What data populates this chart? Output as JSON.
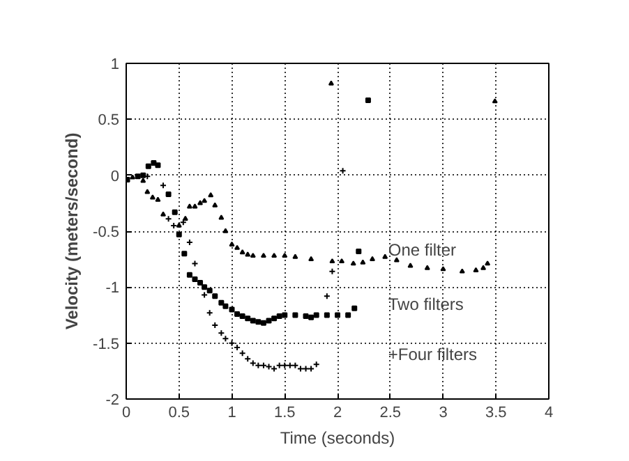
{
  "chart_data": {
    "type": "scatter",
    "xlabel": "Time (seconds)",
    "ylabel": "Velocity (meters/second)",
    "xlim": [
      0,
      4
    ],
    "ylim": [
      -2,
      1
    ],
    "xticks": [
      0,
      0.5,
      1,
      1.5,
      2,
      2.5,
      3,
      3.5,
      4
    ],
    "yticks": [
      -2,
      -1.5,
      -1,
      -0.5,
      0,
      0.5,
      1
    ],
    "grid": true,
    "series": [
      {
        "color": "#000000",
        "marker": "triangle",
        "x": [
          0.06,
          0.16,
          0.2,
          0.25,
          0.3,
          0.35,
          0.4,
          0.5,
          0.56,
          0.6,
          0.65,
          0.7,
          0.74,
          0.8,
          0.84,
          0.9,
          0.94,
          1.0,
          1.05,
          1.1,
          1.15,
          1.2,
          1.3,
          1.4,
          1.5,
          1.6,
          1.75,
          1.95,
          2.04,
          2.15,
          2.24,
          2.33,
          2.45,
          2.56,
          2.69,
          2.85,
          3.0,
          3.18,
          3.31,
          3.38,
          3.42,
          1.94,
          3.49
        ],
        "values": [
          -0.02,
          -0.05,
          -0.15,
          -0.2,
          -0.22,
          -0.35,
          null,
          -0.45,
          -0.39,
          -0.28,
          -0.28,
          -0.25,
          -0.23,
          -0.18,
          -0.27,
          -0.38,
          -0.5,
          -0.62,
          -0.65,
          -0.69,
          -0.71,
          -0.72,
          -0.72,
          -0.72,
          -0.72,
          -0.73,
          -0.75,
          -0.77,
          -0.77,
          -0.79,
          -0.78,
          -0.75,
          -0.73,
          -0.76,
          -0.81,
          -0.83,
          -0.84,
          -0.86,
          -0.85,
          -0.83,
          -0.79,
          0.82,
          0.66
        ]
      },
      {
        "color": "#000000",
        "marker": "square",
        "x": [
          0.01,
          0.11,
          0.16,
          0.21,
          0.26,
          0.3,
          0.4,
          0.46,
          0.5,
          0.55,
          0.6,
          0.65,
          0.7,
          0.74,
          0.79,
          0.84,
          0.9,
          0.94,
          1.0,
          1.05,
          1.1,
          1.15,
          1.2,
          1.25,
          1.3,
          1.35,
          1.4,
          1.45,
          1.5,
          1.6,
          1.7,
          1.75,
          1.8,
          1.9,
          2.0,
          2.1,
          2.16,
          2.2,
          2.29
        ],
        "values": [
          -0.04,
          -0.01,
          0.0,
          0.08,
          0.11,
          0.09,
          -0.17,
          -0.33,
          -0.53,
          -0.7,
          -0.89,
          -0.93,
          -0.96,
          -1.0,
          -1.03,
          -1.08,
          -1.14,
          -1.17,
          -1.2,
          -1.24,
          -1.26,
          -1.28,
          -1.3,
          -1.31,
          -1.32,
          -1.3,
          -1.28,
          -1.26,
          -1.25,
          -1.25,
          -1.26,
          -1.27,
          -1.25,
          -1.25,
          -1.25,
          -1.25,
          -1.19,
          -0.68,
          0.67
        ]
      },
      {
        "color": "#000000",
        "marker": "cross",
        "x": [
          0.2,
          0.35,
          0.4,
          0.45,
          0.54,
          0.6,
          0.65,
          0.74,
          0.79,
          0.84,
          0.9,
          0.94,
          1.0,
          1.05,
          1.1,
          1.15,
          1.2,
          1.25,
          1.3,
          1.35,
          1.4,
          1.45,
          1.5,
          1.55,
          1.6,
          1.65,
          1.7,
          1.75,
          1.8,
          1.9,
          1.95,
          2.05
        ],
        "values": [
          -0.01,
          -0.09,
          -0.39,
          -0.45,
          -0.42,
          -0.6,
          -0.79,
          -1.07,
          -1.23,
          -1.34,
          -1.41,
          -1.46,
          -1.5,
          -1.54,
          -1.59,
          -1.64,
          -1.68,
          -1.7,
          -1.7,
          -1.71,
          -1.73,
          -1.7,
          -1.7,
          -1.7,
          -1.7,
          -1.73,
          -1.73,
          -1.73,
          -1.69,
          -1.08,
          -0.86,
          0.04
        ]
      }
    ],
    "annotations": [
      "One  filter",
      "Two  filters",
      "+Four  filters"
    ]
  }
}
